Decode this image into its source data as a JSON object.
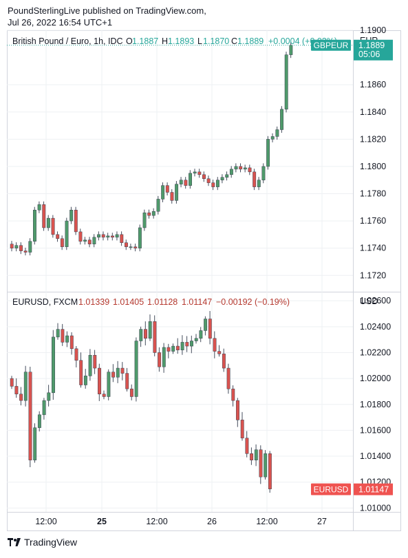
{
  "header": {
    "publisher": "PoundSterlingLive published on TradingView.com,",
    "timestamp": "Jul 26, 2022 16:54 UTC+1"
  },
  "footer": {
    "brand": "TradingView",
    "logo_icon": "tradingview-logo-icon"
  },
  "colors": {
    "up": "#26a69a",
    "down": "#ef5350",
    "up_body": "#4f9a6b",
    "down_body": "#d9534f",
    "grid": "#eef0f3",
    "border": "#d1d4dc"
  },
  "chart_data": [
    {
      "type": "candlestick",
      "title": "British Pound / Euro, 1h, IDC",
      "ohlc_labels": [
        "O",
        "H",
        "L",
        "C"
      ],
      "ohlc_values": [
        "1.1887",
        "1.1893",
        "1.1870",
        "1.1889"
      ],
      "change": "+0.0004 (+0.03%)",
      "currency": "EUR",
      "ylim": [
        1.1708,
        1.19
      ],
      "yticks": [
        "1.1720",
        "1.1740",
        "1.1760",
        "1.1780",
        "1.1800",
        "1.1820",
        "1.1840",
        "1.1860",
        "1.1900"
      ],
      "last_label": "GBPEUR",
      "last_price": "1.1889",
      "countdown": "05:06",
      "last_value": 1.1889,
      "closes": [
        1.174,
        1.1742,
        1.1738,
        1.1737,
        1.1745,
        1.1768,
        1.1772,
        1.1755,
        1.1762,
        1.175,
        1.1747,
        1.1741,
        1.176,
        1.1768,
        1.1752,
        1.1745,
        1.1746,
        1.1743,
        1.1748,
        1.175,
        1.1748,
        1.1749,
        1.1748,
        1.175,
        1.1744,
        1.1741,
        1.1741,
        1.174,
        1.1755,
        1.1766,
        1.1764,
        1.1767,
        1.1776,
        1.1786,
        1.1781,
        1.1775,
        1.1787,
        1.179,
        1.1786,
        1.1795,
        1.1796,
        1.1794,
        1.1791,
        1.1788,
        1.1785,
        1.179,
        1.1792,
        1.1794,
        1.1798,
        1.18,
        1.1798,
        1.1799,
        1.1796,
        1.1785,
        1.179,
        1.18,
        1.182,
        1.1822,
        1.1827,
        1.1842,
        1.1882,
        1.1889
      ]
    },
    {
      "type": "candlestick",
      "title": "EURUSD, FXCM",
      "ohlc_values": [
        "1.01339",
        "1.01405",
        "1.01128",
        "1.01147"
      ],
      "change": "−0.00192 (−0.19%)",
      "currency": "USD",
      "ylim": [
        1.0097,
        1.0267
      ],
      "yticks": [
        "1.01000",
        "1.01200",
        "1.01400",
        "1.01600",
        "1.01800",
        "1.02000",
        "1.02200",
        "1.02400",
        "1.02600"
      ],
      "last_label": "EURUSD",
      "last_price": "1.01147",
      "last_value": 1.01147,
      "closes": [
        1.0194,
        1.0188,
        1.0183,
        1.0205,
        1.0137,
        1.0162,
        1.0172,
        1.0183,
        1.0189,
        1.0232,
        1.0238,
        1.0228,
        1.0233,
        1.0223,
        1.0214,
        1.0195,
        1.0202,
        1.0218,
        1.0208,
        1.0188,
        1.0186,
        1.0205,
        1.0201,
        1.0208,
        1.0204,
        1.0192,
        1.0186,
        1.0229,
        1.0238,
        1.0231,
        1.0244,
        1.022,
        1.0209,
        1.0224,
        1.0221,
        1.0225,
        1.0222,
        1.0228,
        1.0225,
        1.0229,
        1.0231,
        1.0237,
        1.0246,
        1.0231,
        1.0221,
        1.0219,
        1.0208,
        1.0192,
        1.0183,
        1.0168,
        1.0154,
        1.0142,
        1.0137,
        1.0145,
        1.0124,
        1.0142,
        1.01147
      ],
      "x_tick_labels": [
        "12:00",
        "25",
        "12:00",
        "26",
        "12:00",
        "27"
      ]
    }
  ]
}
